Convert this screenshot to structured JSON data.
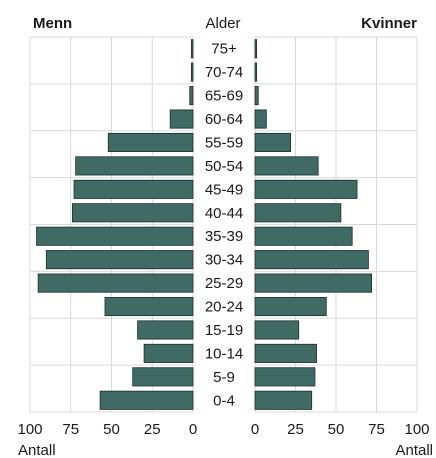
{
  "chart_data": {
    "type": "bar",
    "orientation": "horizontal",
    "layout": "population-pyramid",
    "center_label": "Alder",
    "left_title": "Menn",
    "right_title": "Kvinner",
    "xlabel_left": "Antall",
    "xlabel_right": "Antall",
    "xlim": [
      0,
      100
    ],
    "tick_values": [
      0,
      25,
      50,
      75,
      100
    ],
    "tick_labels_left": [
      "100",
      "75",
      "50",
      "25",
      "0"
    ],
    "tick_labels_right": [
      "0",
      "25",
      "50",
      "75",
      "100"
    ],
    "grid": true,
    "bar_color": "#3f6b64",
    "categories": [
      "75+",
      "70-74",
      "65-69",
      "60-64",
      "55-59",
      "50-54",
      "45-49",
      "40-44",
      "35-39",
      "30-34",
      "25-29",
      "20-24",
      "15-19",
      "10-14",
      "5-9",
      "0-4"
    ],
    "series": [
      {
        "name": "Menn",
        "values": [
          1,
          1,
          2,
          14,
          52,
          72,
          73,
          74,
          96,
          90,
          95,
          54,
          34,
          30,
          37,
          57
        ]
      },
      {
        "name": "Kvinner",
        "values": [
          1,
          1,
          2,
          7,
          22,
          39,
          63,
          53,
          60,
          70,
          72,
          44,
          27,
          38,
          37,
          35
        ]
      }
    ]
  }
}
